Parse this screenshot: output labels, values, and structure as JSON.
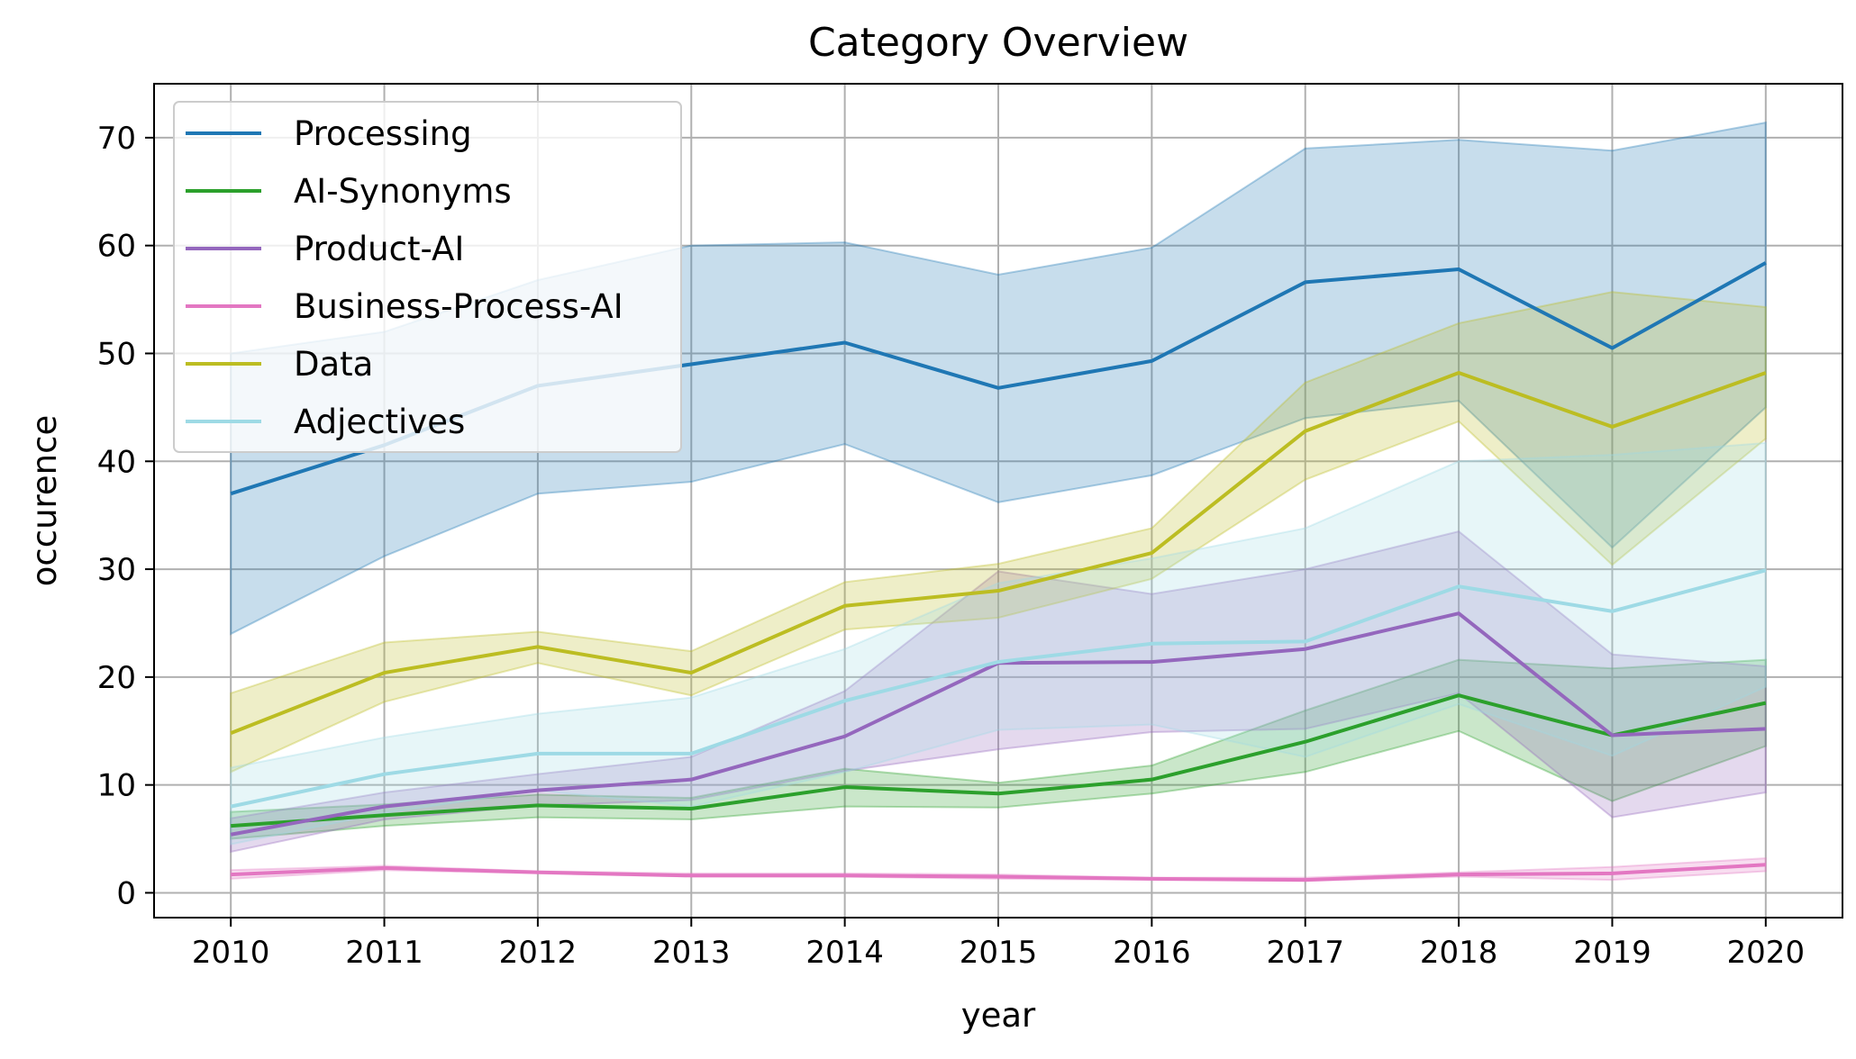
{
  "chart_data": {
    "type": "line",
    "title": "Category Overview",
    "xlabel": "year",
    "ylabel": "occurence",
    "x": [
      2010,
      2011,
      2012,
      2013,
      2014,
      2015,
      2016,
      2017,
      2018,
      2019,
      2020
    ],
    "xlim": [
      2009.5,
      2020.5
    ],
    "ylim": [
      -2.3,
      75
    ],
    "yticks": [
      0,
      10,
      20,
      30,
      40,
      50,
      60,
      70
    ],
    "grid": true,
    "legend": "top-left",
    "series": [
      {
        "name": "Processing",
        "color": "#1f77b4",
        "values": [
          37.0,
          41.5,
          47.0,
          49.0,
          51.0,
          46.8,
          49.3,
          56.6,
          57.8,
          50.5,
          58.4
        ],
        "lower": [
          24.0,
          31.2,
          37.0,
          38.1,
          41.6,
          36.2,
          38.7,
          44.0,
          45.6,
          32.0,
          45.0
        ],
        "upper": [
          50.0,
          52.0,
          56.8,
          60.0,
          60.3,
          57.3,
          59.8,
          69.0,
          69.8,
          68.8,
          71.4
        ]
      },
      {
        "name": "AI-Synonyms",
        "color": "#2ca02c",
        "values": [
          6.2,
          7.2,
          8.1,
          7.8,
          9.8,
          9.2,
          10.5,
          14.0,
          18.3,
          14.6,
          17.6
        ],
        "lower": [
          5.0,
          6.2,
          7.0,
          6.8,
          8.0,
          7.9,
          9.2,
          11.2,
          15.0,
          8.5,
          13.6
        ],
        "upper": [
          7.5,
          8.2,
          9.1,
          8.8,
          11.5,
          10.2,
          11.8,
          16.9,
          21.6,
          20.8,
          21.6
        ]
      },
      {
        "name": "Product-AI",
        "color": "#9467bd",
        "values": [
          5.4,
          8.0,
          9.5,
          10.5,
          14.5,
          21.3,
          21.4,
          22.6,
          25.9,
          14.6,
          15.2
        ],
        "lower": [
          3.8,
          6.8,
          8.1,
          8.6,
          11.3,
          13.3,
          14.9,
          15.2,
          18.5,
          7.0,
          9.3
        ],
        "upper": [
          6.9,
          9.3,
          11.0,
          12.6,
          18.7,
          29.8,
          27.7,
          30.0,
          33.5,
          22.1,
          21.0
        ]
      },
      {
        "name": "Business-Process-AI",
        "color": "#e377c2",
        "values": [
          1.7,
          2.3,
          1.9,
          1.6,
          1.6,
          1.5,
          1.3,
          1.2,
          1.7,
          1.8,
          2.6
        ],
        "lower": [
          1.3,
          2.1,
          1.8,
          1.5,
          1.5,
          1.3,
          1.2,
          1.1,
          1.5,
          1.2,
          2.0
        ],
        "upper": [
          2.1,
          2.5,
          2.0,
          1.8,
          1.8,
          1.7,
          1.4,
          1.4,
          1.9,
          2.4,
          3.2
        ]
      },
      {
        "name": "Data",
        "color": "#bcbd22",
        "values": [
          14.8,
          20.4,
          22.8,
          20.4,
          26.6,
          28.0,
          31.5,
          42.8,
          48.2,
          43.2,
          48.2
        ],
        "lower": [
          11.2,
          17.7,
          21.3,
          18.3,
          24.4,
          25.5,
          29.1,
          38.3,
          43.7,
          30.4,
          42.1
        ],
        "upper": [
          18.5,
          23.2,
          24.2,
          22.4,
          28.8,
          30.5,
          33.8,
          47.3,
          52.8,
          55.7,
          54.3
        ]
      },
      {
        "name": "Adjectives",
        "color": "#9edae5",
        "values": [
          8.0,
          11.0,
          12.9,
          12.9,
          17.8,
          21.4,
          23.1,
          23.3,
          28.4,
          26.1,
          29.9
        ],
        "lower": [
          4.5,
          7.4,
          9.5,
          8.0,
          11.2,
          15.1,
          15.6,
          12.6,
          17.5,
          12.7,
          19.1
        ],
        "upper": [
          11.6,
          14.4,
          16.6,
          18.1,
          22.6,
          28.7,
          31.0,
          33.8,
          40.0,
          40.6,
          41.7
        ]
      }
    ]
  }
}
